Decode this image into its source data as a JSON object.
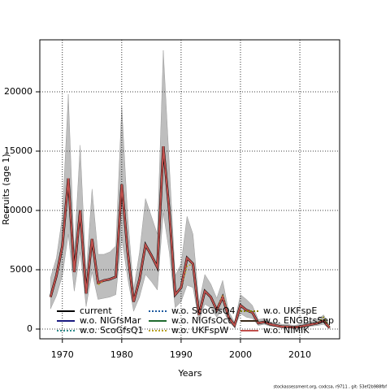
{
  "chart_data": {
    "type": "line",
    "xlabel": "Years",
    "ylabel": "Recruits (age 1)",
    "footnote": "stockassessment.org, codcsa, r9711 , git: 53ef2b988fbf",
    "x": [
      1968,
      1969,
      1970,
      1971,
      1972,
      1973,
      1974,
      1975,
      1976,
      1977,
      1978,
      1979,
      1980,
      1981,
      1982,
      1983,
      1984,
      1985,
      1986,
      1987,
      1988,
      1989,
      1990,
      1991,
      1992,
      1993,
      1994,
      1995,
      1996,
      1997,
      1998,
      1999,
      2000,
      2001,
      2002,
      2003,
      2004,
      2005,
      2006,
      2007,
      2008,
      2009,
      2010,
      2011,
      2012,
      2013,
      2014,
      2015
    ],
    "band": {
      "color": "#bebebe",
      "upper": [
        4300,
        6000,
        9500,
        19800,
        6500,
        15500,
        4500,
        11800,
        6300,
        6300,
        6500,
        7000,
        18800,
        9500,
        3300,
        6500,
        11000,
        9500,
        8000,
        23500,
        14000,
        4500,
        5500,
        9500,
        8000,
        2200,
        4600,
        3800,
        2600,
        4100,
        1500,
        600,
        2900,
        2500,
        2000,
        800,
        900,
        600,
        500,
        400,
        400,
        300,
        400,
        500,
        700,
        800,
        1200,
        300
      ],
      "lower": [
        1700,
        2800,
        4500,
        8000,
        3200,
        6500,
        1900,
        4800,
        2500,
        2600,
        2700,
        2900,
        7700,
        4300,
        1500,
        2700,
        4600,
        4000,
        3300,
        9800,
        6500,
        1800,
        2300,
        3700,
        3500,
        700,
        2100,
        1800,
        1000,
        1700,
        600,
        150,
        1300,
        1000,
        900,
        300,
        400,
        250,
        200,
        100,
        100,
        80,
        100,
        150,
        250,
        300,
        400,
        50
      ]
    },
    "series": [
      {
        "name": "current",
        "color": "#000000",
        "linestyle": "solid",
        "values": [
          2700,
          4500,
          7000,
          12700,
          4800,
          10000,
          3000,
          7600,
          3900,
          4100,
          4200,
          4400,
          12200,
          6500,
          2300,
          4200,
          7100,
          6200,
          5200,
          15400,
          10000,
          2900,
          3500,
          6000,
          5500,
          1200,
          3200,
          2700,
          1600,
          2700,
          1000,
          300,
          2000,
          1600,
          1400,
          500,
          600,
          400,
          300,
          200,
          200,
          150,
          200,
          300,
          400,
          500,
          700,
          100
        ]
      },
      {
        "name": "w.o. NIGfsMar",
        "color": "#1a1a80",
        "linestyle": "solid",
        "values": [
          2700,
          4500,
          7000,
          12700,
          4800,
          10000,
          3000,
          7600,
          3900,
          4100,
          4200,
          4400,
          12200,
          6500,
          2300,
          4200,
          7100,
          6200,
          5200,
          15400,
          10000,
          2900,
          3500,
          6000,
          5500,
          1200,
          3200,
          2700,
          1600,
          2700,
          1000,
          300,
          2000,
          1600,
          1400,
          500,
          600,
          400,
          300,
          200,
          200,
          150,
          200,
          300,
          400,
          500,
          700,
          100
        ]
      },
      {
        "name": "w.o. ScoGfsQ1",
        "color": "#2e8b8b",
        "linestyle": "dotted",
        "values": [
          2700,
          4500,
          7000,
          12700,
          4800,
          10000,
          3000,
          7600,
          3900,
          4100,
          4200,
          4400,
          12200,
          6500,
          2300,
          4200,
          7100,
          6200,
          5200,
          15400,
          10000,
          2900,
          3500,
          6000,
          5500,
          1200,
          3200,
          2700,
          1600,
          2700,
          1000,
          300,
          2000,
          1600,
          1400,
          500,
          600,
          400,
          300,
          200,
          200,
          150,
          200,
          300,
          400,
          500,
          700,
          100
        ]
      },
      {
        "name": "w.o. ScoGfsQ4",
        "color": "#1e5aa0",
        "linestyle": "dotted",
        "values": [
          2700,
          4500,
          7000,
          12700,
          4800,
          10000,
          3000,
          7600,
          3900,
          4100,
          4200,
          4400,
          12200,
          6500,
          2300,
          4200,
          7100,
          6200,
          5200,
          15400,
          10000,
          2900,
          3500,
          6000,
          5500,
          1200,
          3200,
          2700,
          1600,
          2700,
          1000,
          300,
          2000,
          1600,
          1400,
          500,
          600,
          400,
          300,
          200,
          200,
          150,
          200,
          300,
          400,
          500,
          700,
          100
        ]
      },
      {
        "name": "w.o. NIGfsOct",
        "color": "#1f6b2f",
        "linestyle": "solid",
        "values": [
          2700,
          4500,
          7000,
          12700,
          4800,
          10000,
          3000,
          7600,
          3900,
          4100,
          4200,
          4400,
          12200,
          6500,
          2300,
          4200,
          7100,
          6200,
          5200,
          15400,
          10000,
          2900,
          3500,
          6000,
          5500,
          1200,
          3200,
          2700,
          1600,
          2700,
          1000,
          300,
          2000,
          1600,
          1400,
          500,
          600,
          400,
          300,
          200,
          200,
          150,
          200,
          300,
          400,
          500,
          700,
          100
        ]
      },
      {
        "name": "w.o. UKFspW",
        "color": "#b8a020",
        "linestyle": "dotted",
        "values": [
          2700,
          4500,
          7000,
          12700,
          4800,
          10000,
          3000,
          7600,
          3700,
          4100,
          4200,
          4400,
          12200,
          6500,
          2300,
          4200,
          7100,
          6200,
          5200,
          15400,
          10000,
          2900,
          3500,
          5300,
          5500,
          1200,
          3200,
          2700,
          1600,
          2900,
          1000,
          300,
          2000,
          1600,
          1400,
          500,
          600,
          400,
          300,
          200,
          200,
          150,
          200,
          300,
          400,
          500,
          700,
          100
        ]
      },
      {
        "name": "w.o. UKFspE",
        "color": "#808000",
        "linestyle": "dotted",
        "values": [
          2700,
          4500,
          7000,
          12700,
          4800,
          10000,
          3000,
          7600,
          3900,
          4100,
          4200,
          4400,
          12200,
          6500,
          2300,
          4200,
          7100,
          6200,
          5200,
          15400,
          10000,
          2900,
          3500,
          6000,
          5500,
          1200,
          3200,
          2700,
          1600,
          2700,
          1000,
          300,
          2000,
          1600,
          1400,
          500,
          600,
          400,
          300,
          200,
          200,
          150,
          200,
          300,
          400,
          500,
          1000,
          100
        ]
      },
      {
        "name": "w.o. ENGBtsSep",
        "color": "#3a2a1a",
        "linestyle": "solid",
        "values": [
          2700,
          4500,
          7000,
          12700,
          4800,
          10000,
          3000,
          7600,
          3900,
          4100,
          4200,
          4400,
          12200,
          6500,
          2300,
          4200,
          7100,
          6200,
          5200,
          15400,
          10000,
          2900,
          3500,
          6000,
          5500,
          1200,
          3200,
          2700,
          1600,
          2700,
          1000,
          300,
          2000,
          1600,
          1400,
          500,
          600,
          400,
          300,
          200,
          200,
          150,
          200,
          300,
          400,
          500,
          700,
          100
        ]
      },
      {
        "name": "w.o. NIMIK",
        "color": "#c0504d",
        "linestyle": "solid",
        "values": [
          2700,
          4500,
          7000,
          12700,
          4800,
          10000,
          3000,
          7600,
          3900,
          4100,
          4200,
          4400,
          12200,
          6500,
          2300,
          4200,
          7100,
          6200,
          5200,
          15400,
          10000,
          2900,
          3500,
          6000,
          5500,
          1200,
          3200,
          2700,
          1600,
          2700,
          1000,
          300,
          2000,
          1600,
          1400,
          500,
          600,
          400,
          300,
          200,
          200,
          150,
          200,
          300,
          400,
          500,
          700,
          100
        ]
      }
    ],
    "xlim": [
      1966.2,
      2016.7
    ],
    "xticks": [
      1970,
      1980,
      1990,
      2000,
      2010
    ],
    "ylim": [
      -822,
      24384
    ],
    "yticks": [
      0,
      5000,
      10000,
      15000,
      20000
    ],
    "grid": true,
    "legend": "bottom"
  }
}
